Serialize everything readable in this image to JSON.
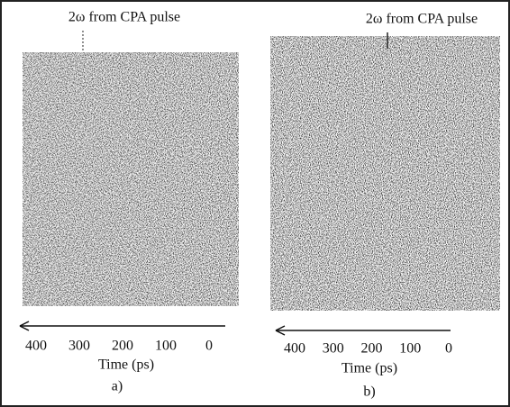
{
  "panels": [
    {
      "annotation": "2ω from CPA pulse",
      "ticks": [
        400,
        300,
        200,
        100,
        0
      ],
      "axis_label": "Time (ps)",
      "caption": "a)"
    },
    {
      "annotation": "2ω from CPA pulse",
      "ticks": [
        400,
        300,
        200,
        100,
        0
      ],
      "axis_label": "Time (ps)",
      "caption": "b)"
    }
  ]
}
